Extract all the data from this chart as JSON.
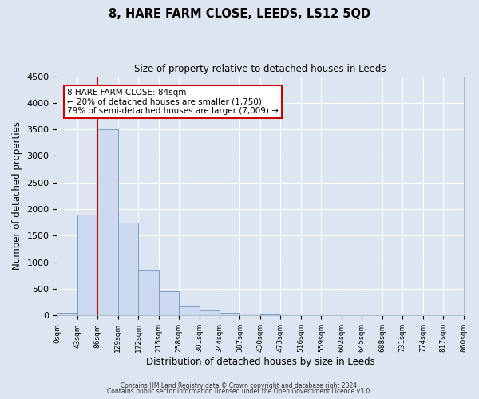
{
  "title": "8, HARE FARM CLOSE, LEEDS, LS12 5QD",
  "subtitle": "Size of property relative to detached houses in Leeds",
  "xlabel": "Distribution of detached houses by size in Leeds",
  "ylabel": "Number of detached properties",
  "bar_color": "#ccd9ee",
  "bar_edgecolor": "#7aa0cc",
  "background_color": "#dde6f0",
  "tick_labels": [
    "0sqm",
    "43sqm",
    "86sqm",
    "129sqm",
    "172sqm",
    "215sqm",
    "258sqm",
    "301sqm",
    "344sqm",
    "387sqm",
    "430sqm",
    "473sqm",
    "516sqm",
    "559sqm",
    "602sqm",
    "645sqm",
    "688sqm",
    "731sqm",
    "774sqm",
    "817sqm",
    "860sqm"
  ],
  "bar_heights": [
    50,
    1900,
    3500,
    1750,
    860,
    460,
    175,
    95,
    50,
    30,
    20,
    0,
    0,
    0,
    0,
    0,
    0,
    0,
    0,
    0
  ],
  "ylim": [
    0,
    4500
  ],
  "yticks": [
    0,
    500,
    1000,
    1500,
    2000,
    2500,
    3000,
    3500,
    4000,
    4500
  ],
  "property_line_x": 2,
  "annotation_title": "8 HARE FARM CLOSE: 84sqm",
  "annotation_line1": "← 20% of detached houses are smaller (1,750)",
  "annotation_line2": "79% of semi-detached houses are larger (7,009) →",
  "annotation_box_color": "#ffffff",
  "annotation_box_edgecolor": "#cc0000",
  "red_line_color": "#cc0000",
  "footer_line1": "Contains HM Land Registry data © Crown copyright and database right 2024.",
  "footer_line2": "Contains public sector information licensed under the Open Government Licence v3.0."
}
